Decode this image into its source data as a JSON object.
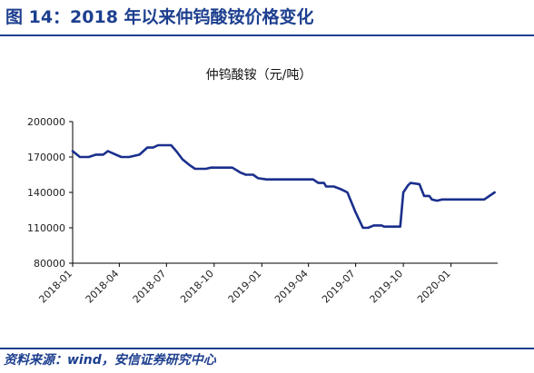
{
  "figure": {
    "title": "图 14：2018 年以来仲钨酸铵价格变化",
    "source_label": "资料来源：",
    "source_text": "wind，安信证券研究中心",
    "colors": {
      "brand": "#1d3f8f",
      "line": "#1a2f8c",
      "axis": "#000000"
    }
  },
  "chart_data": {
    "type": "line",
    "title": "仲钨酸铵（元/吨）",
    "xlabel": "",
    "ylabel": "",
    "ylim": [
      80000,
      200000
    ],
    "yticks": [
      80000,
      110000,
      140000,
      170000,
      200000
    ],
    "ytick_labels": [
      "80000",
      "110000",
      "140000",
      "170000",
      "200000"
    ],
    "xticks": [
      "2018-01-01",
      "2018-04-01",
      "2018-07-01",
      "2018-10-01",
      "2019-01-01",
      "2019-04-01",
      "2019-07-01",
      "2019-10-01",
      "2020-01-01"
    ],
    "xtick_labels": [
      "2018-01",
      "2018-04",
      "2018-07",
      "2018-10",
      "2019-01",
      "2019-04",
      "2019-07",
      "2019-10",
      "2020-01"
    ],
    "xlim": [
      "2018-01-01",
      "2020-03-31"
    ],
    "grid": false,
    "legend": "none",
    "series": [
      {
        "name": "仲钨酸铵",
        "points": [
          [
            "2018-01-01",
            175000
          ],
          [
            "2018-01-15",
            170000
          ],
          [
            "2018-02-01",
            170000
          ],
          [
            "2018-02-15",
            172000
          ],
          [
            "2018-03-01",
            172000
          ],
          [
            "2018-03-10",
            175000
          ],
          [
            "2018-03-20",
            173000
          ],
          [
            "2018-04-05",
            170000
          ],
          [
            "2018-04-20",
            170000
          ],
          [
            "2018-05-10",
            172000
          ],
          [
            "2018-05-25",
            178000
          ],
          [
            "2018-06-05",
            178000
          ],
          [
            "2018-06-15",
            180000
          ],
          [
            "2018-07-10",
            180000
          ],
          [
            "2018-07-20",
            175000
          ],
          [
            "2018-08-01",
            168000
          ],
          [
            "2018-08-15",
            163000
          ],
          [
            "2018-08-25",
            160000
          ],
          [
            "2018-09-15",
            160000
          ],
          [
            "2018-09-25",
            161000
          ],
          [
            "2018-11-05",
            161000
          ],
          [
            "2018-11-20",
            157000
          ],
          [
            "2018-12-01",
            155000
          ],
          [
            "2018-12-15",
            155000
          ],
          [
            "2018-12-25",
            152000
          ],
          [
            "2019-01-10",
            151000
          ],
          [
            "2019-04-10",
            151000
          ],
          [
            "2019-04-20",
            148000
          ],
          [
            "2019-05-01",
            148000
          ],
          [
            "2019-05-05",
            145000
          ],
          [
            "2019-05-20",
            145000
          ],
          [
            "2019-06-01",
            143000
          ],
          [
            "2019-06-15",
            140000
          ],
          [
            "2019-07-01",
            123000
          ],
          [
            "2019-07-15",
            110000
          ],
          [
            "2019-07-25",
            110000
          ],
          [
            "2019-08-05",
            112000
          ],
          [
            "2019-08-20",
            112000
          ],
          [
            "2019-08-25",
            111000
          ],
          [
            "2019-09-25",
            111000
          ],
          [
            "2019-10-01",
            140000
          ],
          [
            "2019-10-10",
            146000
          ],
          [
            "2019-10-15",
            148000
          ],
          [
            "2019-11-01",
            147000
          ],
          [
            "2019-11-10",
            137000
          ],
          [
            "2019-11-20",
            137000
          ],
          [
            "2019-11-25",
            134000
          ],
          [
            "2019-12-05",
            133000
          ],
          [
            "2019-12-15",
            134000
          ],
          [
            "2020-03-05",
            134000
          ],
          [
            "2020-03-25",
            140000
          ]
        ]
      }
    ]
  }
}
